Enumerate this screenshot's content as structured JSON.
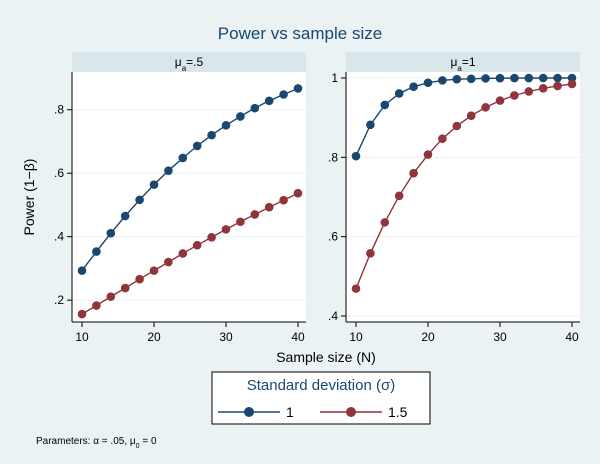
{
  "chart_data": {
    "type": "line",
    "title": "Power vs sample size",
    "xlabel": "Sample size (N)",
    "ylabel": "Power (1−β)",
    "x": [
      10,
      12,
      14,
      16,
      18,
      20,
      22,
      24,
      26,
      28,
      30,
      32,
      34,
      36,
      38,
      40
    ],
    "xlim": [
      10,
      40
    ],
    "xticks": [
      10,
      20,
      30,
      40
    ],
    "xtick_labels": [
      "10",
      "20",
      "30",
      "40"
    ],
    "panels": [
      {
        "label_base": "μ",
        "label_sub": "a",
        "label_rest": "=.5",
        "ylim": [
          0.15,
          0.9
        ],
        "yticks": [
          0.2,
          0.4,
          0.6,
          0.8
        ],
        "ytick_labels": [
          ".2",
          ".4",
          ".6",
          ".8"
        ],
        "series": [
          {
            "name": "1",
            "values": [
              0.293,
              0.353,
              0.411,
              0.465,
              0.516,
              0.564,
              0.608,
              0.648,
              0.686,
              0.72,
              0.751,
              0.779,
              0.805,
              0.828,
              0.848,
              0.867
            ]
          },
          {
            "name": "1.5",
            "values": [
              0.156,
              0.183,
              0.211,
              0.238,
              0.266,
              0.293,
              0.32,
              0.347,
              0.373,
              0.398,
              0.423,
              0.447,
              0.47,
              0.493,
              0.515,
              0.537
            ]
          }
        ]
      },
      {
        "label_base": "μ",
        "label_sub": "a",
        "label_rest": "=1",
        "ylim": [
          0.4,
          1.0
        ],
        "yticks": [
          0.4,
          0.6,
          0.8,
          1.0
        ],
        "ytick_labels": [
          ".4",
          ".6",
          ".8",
          "1"
        ],
        "series": [
          {
            "name": "1",
            "values": [
              0.803,
              0.882,
              0.932,
              0.961,
              0.978,
              0.988,
              0.994,
              0.997,
              0.998,
              0.999,
              0.9995,
              0.9998,
              0.9999,
              1.0,
              1.0,
              1.0
            ]
          },
          {
            "name": "1.5",
            "values": [
              0.469,
              0.558,
              0.636,
              0.703,
              0.76,
              0.807,
              0.847,
              0.879,
              0.905,
              0.926,
              0.943,
              0.956,
              0.966,
              0.974,
              0.98,
              0.985
            ]
          }
        ]
      }
    ],
    "legend": {
      "title": "Standard deviation (σ)",
      "position": "bottom",
      "entries": [
        "1",
        "1.5"
      ]
    },
    "grid": "horizontal",
    "colors": {
      "series1": "#1a476f",
      "series2": "#90353b",
      "background": "#eaf2f3",
      "strip": "#d9e6eb",
      "grid": "#eaf2f3",
      "plot_bg": "#ffffff"
    }
  },
  "note": {
    "prefix": "Parameters: α = .05, μ",
    "sub": "0",
    "suffix": " = 0"
  }
}
